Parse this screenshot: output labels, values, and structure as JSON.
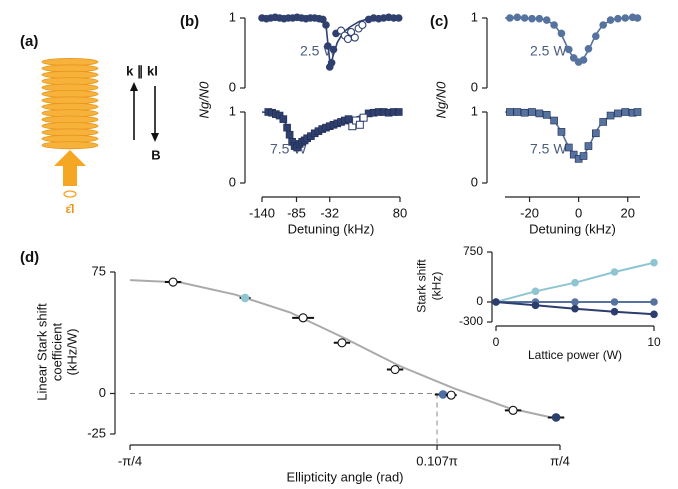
{
  "diagram": {
    "label": "(a)",
    "k_label": "k ∥ kl",
    "b_label": "B",
    "pol_label": "ε̂l"
  },
  "chart_data": [
    {
      "type": "scatter",
      "panel": "(b)",
      "annotation": "2.5 W",
      "ylabel": "Ng/N0",
      "xlim": [
        -140,
        80
      ],
      "ylim": [
        0,
        1
      ],
      "yticks": [
        0,
        1
      ],
      "series": [
        {
          "marker": "circle",
          "filled": true,
          "color": "#2f3f6e",
          "x": [
            -140,
            -133,
            -126,
            -119,
            -112,
            -105,
            -98,
            -91,
            -84,
            -77,
            -70,
            -63,
            -56,
            -49,
            -43,
            -38,
            -35,
            -32,
            -29,
            -26,
            -22,
            30,
            38,
            46,
            54,
            62,
            70,
            78
          ],
          "values": [
            1,
            0.99,
            1,
            1.01,
            1,
            0.99,
            1,
            1,
            1.01,
            1,
            0.99,
            1,
            1,
            0.99,
            0.98,
            0.9,
            0.6,
            0.3,
            0.36,
            0.55,
            0.78,
            0.98,
            1,
            0.99,
            1,
            1.01,
            1,
            1
          ]
        },
        {
          "marker": "circle",
          "filled": false,
          "color": "#2f3f6e",
          "x": [
            -14,
            -8,
            -3,
            2,
            8,
            14,
            20
          ],
          "values": [
            0.82,
            0.75,
            0.7,
            0.8,
            0.72,
            0.85,
            0.9
          ]
        }
      ],
      "fit": {
        "color": "#2f3f6e",
        "x": [
          -140,
          -45,
          -38,
          -34,
          -31,
          -27,
          -20,
          -10,
          0,
          15,
          30,
          80
        ],
        "values": [
          1,
          1,
          0.9,
          0.55,
          0.3,
          0.45,
          0.65,
          0.8,
          0.87,
          0.95,
          0.99,
          1
        ]
      }
    },
    {
      "type": "scatter",
      "annotation": "7.5 W",
      "xlabel": "Detuning (kHz)",
      "xlim": [
        -140,
        80
      ],
      "xticks": [
        -140,
        -85,
        -32,
        80
      ],
      "ylim": [
        0,
        1
      ],
      "yticks": [
        0,
        1
      ],
      "series": [
        {
          "marker": "square",
          "filled": true,
          "color": "#2f3f6e",
          "x": [
            -130,
            -124,
            -118,
            -112,
            -106,
            -100,
            -96,
            -92,
            -88,
            -84,
            -80,
            -76,
            -72,
            -68,
            -62,
            -56,
            -50,
            -44,
            -38,
            -32,
            -26,
            -20,
            -14,
            -8,
            -2,
            30,
            38,
            46,
            54,
            62,
            70,
            78
          ],
          "values": [
            1,
            0.99,
            0.97,
            0.95,
            0.9,
            0.78,
            0.68,
            0.58,
            0.52,
            0.5,
            0.55,
            0.58,
            0.6,
            0.63,
            0.66,
            0.7,
            0.73,
            0.76,
            0.78,
            0.8,
            0.82,
            0.84,
            0.86,
            0.88,
            0.9,
            0.98,
            0.99,
            1,
            1,
            0.99,
            1,
            1
          ]
        },
        {
          "marker": "square",
          "filled": false,
          "color": "#2f3f6e",
          "x": [
            4,
            10,
            16,
            22
          ],
          "values": [
            0.8,
            0.88,
            0.82,
            0.92
          ]
        }
      ],
      "fit": {
        "color": "#2f3f6e",
        "x": [
          -140,
          -110,
          -100,
          -90,
          -85,
          -70,
          -40,
          0,
          30,
          80
        ],
        "values": [
          1,
          0.97,
          0.8,
          0.55,
          0.5,
          0.62,
          0.77,
          0.9,
          0.98,
          1
        ]
      }
    },
    {
      "type": "scatter",
      "panel": "(c)",
      "annotation": "2.5 W",
      "ylabel": "Ng/N0",
      "xlim": [
        -30,
        25
      ],
      "ylim": [
        0,
        1
      ],
      "yticks": [
        0,
        1
      ],
      "series": [
        {
          "marker": "circle",
          "filled": true,
          "color": "#56729f",
          "x": [
            -28,
            -25,
            -22,
            -19,
            -16,
            -13,
            -10,
            -7,
            -4,
            -2,
            0,
            2,
            4,
            7,
            10,
            13,
            16,
            19,
            22,
            24
          ],
          "values": [
            1,
            1.01,
            1,
            0.99,
            0.99,
            0.97,
            0.9,
            0.78,
            0.55,
            0.43,
            0.37,
            0.4,
            0.56,
            0.74,
            0.9,
            0.97,
            0.99,
            1,
            1.01,
            1
          ]
        }
      ],
      "fit": {
        "color": "#56729f",
        "x": [
          -30,
          -15,
          -10,
          -7,
          -4,
          -2,
          0,
          2,
          4,
          7,
          10,
          15,
          25
        ],
        "values": [
          1,
          0.99,
          0.91,
          0.76,
          0.54,
          0.42,
          0.37,
          0.42,
          0.54,
          0.76,
          0.91,
          0.99,
          1
        ]
      }
    },
    {
      "type": "scatter",
      "annotation": "7.5 W",
      "xlabel": "Detuning (kHz)",
      "xlim": [
        -30,
        25
      ],
      "xticks": [
        -20,
        0,
        20
      ],
      "ylim": [
        0,
        1
      ],
      "yticks": [
        0,
        1
      ],
      "series": [
        {
          "marker": "square",
          "filled": true,
          "color": "#56729f",
          "x": [
            -28,
            -25,
            -22,
            -19,
            -16,
            -13,
            -10,
            -7,
            -4,
            -2,
            0,
            2,
            4,
            7,
            10,
            13,
            16,
            19,
            22,
            24
          ],
          "values": [
            1,
            1,
            0.99,
            1,
            0.98,
            0.96,
            0.88,
            0.72,
            0.5,
            0.4,
            0.34,
            0.38,
            0.52,
            0.7,
            0.86,
            0.95,
            0.98,
            1,
            0.99,
            1
          ]
        }
      ],
      "fit": {
        "color": "#56729f",
        "x": [
          -30,
          -15,
          -10,
          -7,
          -4,
          -2,
          0,
          2,
          4,
          7,
          10,
          15,
          25
        ],
        "values": [
          1,
          0.98,
          0.88,
          0.72,
          0.5,
          0.39,
          0.34,
          0.39,
          0.5,
          0.72,
          0.88,
          0.98,
          1
        ]
      }
    },
    {
      "type": "scatter",
      "panel": "(d)",
      "xlabel": "Ellipticity angle (rad)",
      "ylabel": [
        "Linear Stark shift",
        "coefficient",
        "(kHz/W)"
      ],
      "xlim": [
        -0.7854,
        0.7854
      ],
      "xticks": [
        {
          "value": -0.7854,
          "label": "-π/4"
        },
        {
          "value": 0.3362,
          "label": "0.107π"
        },
        {
          "value": 0.7854,
          "label": "π/4"
        }
      ],
      "ylim": [
        -25,
        75
      ],
      "yticks": [
        -25,
        0,
        75
      ],
      "series": [
        {
          "marker": "circle",
          "filled": true,
          "x": [
            -0.628,
            -0.365,
            -0.153,
            -0.011,
            0.183,
            0.358,
            0.388,
            0.614,
            0.771
          ],
          "values": [
            68.8,
            59,
            46.7,
            31.3,
            14.8,
            -0.6,
            -1,
            -10.4,
            -14.8
          ],
          "xerr": [
            0.03,
            0.02,
            0.04,
            0.03,
            0.03,
            0.03,
            0.02,
            0.03,
            0.03
          ],
          "colors": [
            "#ffffff",
            "#8ec5d1",
            "#ffffff",
            "#ffffff",
            "#ffffff",
            "#4a6fa5",
            "#ffffff",
            "#ffffff",
            "#2c3e6e"
          ]
        }
      ],
      "fit": {
        "color": "#aaaaaa",
        "x": [
          -0.785,
          -0.6,
          -0.4,
          -0.2,
          0,
          0.2,
          0.4,
          0.6,
          0.785
        ],
        "values": [
          70,
          68.5,
          61,
          50,
          34,
          17,
          3,
          -9,
          -16
        ]
      }
    },
    {
      "type": "line",
      "xlabel": "Lattice power (W)",
      "ylabel": [
        "Stark shift",
        "(kHz)"
      ],
      "xlim": [
        0,
        10
      ],
      "xticks": [
        0,
        10
      ],
      "ylim": [
        -300,
        750
      ],
      "yticks": [
        -300,
        0,
        750
      ],
      "series": [
        {
          "marker": "circle",
          "filled": true,
          "line": true,
          "color": "#8ec5d1",
          "x": [
            0,
            2.5,
            5,
            7.5,
            10
          ],
          "values": [
            0,
            160,
            290,
            450,
            590
          ]
        },
        {
          "marker": "circle",
          "filled": true,
          "line": true,
          "color": "#56729f",
          "x": [
            0,
            2.5,
            5,
            7.5,
            10
          ],
          "values": [
            0,
            0,
            0,
            0,
            0
          ]
        },
        {
          "marker": "circle",
          "filled": true,
          "line": true,
          "color": "#2c3e6e",
          "x": [
            0,
            2.5,
            5,
            7.5,
            10
          ],
          "values": [
            0,
            -50,
            -100,
            -145,
            -185
          ]
        }
      ]
    }
  ]
}
